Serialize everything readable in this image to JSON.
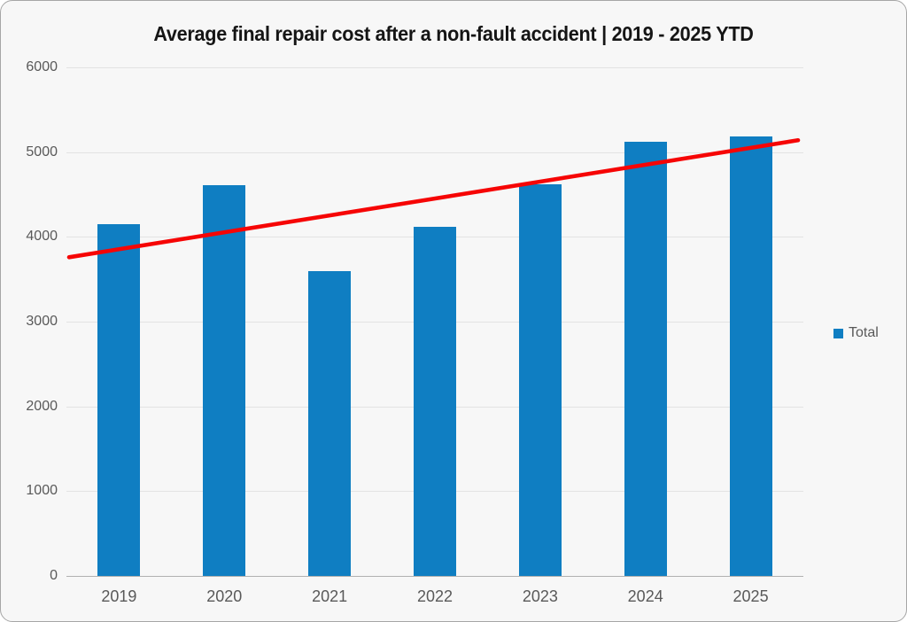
{
  "chart_data": {
    "type": "bar",
    "title": "Average final repair cost after a non-fault accident | 2019 - 2025 YTD",
    "categories": [
      "2019",
      "2020",
      "2021",
      "2022",
      "2023",
      "2024",
      "2025"
    ],
    "series": [
      {
        "name": "Total",
        "values": [
          4150,
          4610,
          3600,
          4120,
          4620,
          5120,
          5180
        ]
      }
    ],
    "trendline": {
      "start_value": 3760,
      "end_value": 5140,
      "color": "#f60505"
    },
    "xlabel": "",
    "ylabel": "",
    "ylim": [
      0,
      6000
    ],
    "yticks": [
      0,
      1000,
      2000,
      3000,
      4000,
      5000,
      6000
    ],
    "grid": true,
    "legend_position": "right",
    "colors": {
      "bar": "#0f7ec2",
      "trend": "#f60505",
      "background": "#f7f7f7",
      "axis_text": "#595959"
    }
  }
}
